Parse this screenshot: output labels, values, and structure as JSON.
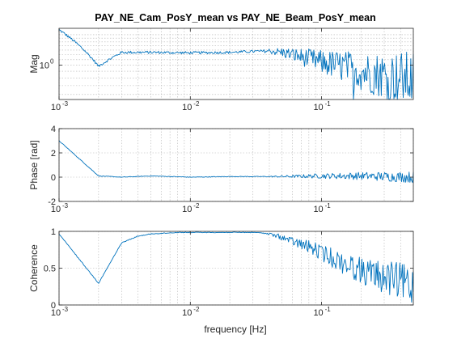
{
  "figure": {
    "title": "PAY_NE_Cam_PosY_mean vs PAY_NE_Beam_PosY_mean",
    "xlabel": "frequency [Hz]",
    "line_color": "#0072bd",
    "grid": true
  },
  "chart_data": [
    {
      "type": "line",
      "ylabel": "Mag",
      "xscale": "log",
      "yscale": "log",
      "xlim": [
        0.001,
        0.5
      ],
      "ylim": [
        0.55,
        1.9
      ],
      "x_ticks": [
        "10",
        "10",
        "10"
      ],
      "x_tick_exponents": [
        "-3",
        "-2",
        "-1"
      ],
      "y_ticks": [
        "10"
      ],
      "y_tick_exponents": [
        "0"
      ],
      "series": [
        {
          "x": [
            0.001,
            0.002,
            0.003,
            0.005,
            0.01,
            0.02,
            0.03,
            0.04,
            0.05,
            0.06,
            0.08,
            0.1,
            0.15,
            0.2,
            0.3,
            0.4,
            0.5
          ],
          "y": [
            1.85,
            0.98,
            1.25,
            1.25,
            1.24,
            1.25,
            1.27,
            1.28,
            1.25,
            1.2,
            1.12,
            1.05,
            0.97,
            0.9,
            0.84,
            0.8,
            0.78
          ]
        }
      ]
    },
    {
      "type": "line",
      "ylabel": "Phase [rad]",
      "xscale": "log",
      "yscale": "linear",
      "xlim": [
        0.001,
        0.5
      ],
      "ylim": [
        -2,
        4
      ],
      "x_ticks": [
        "10",
        "10",
        "10"
      ],
      "x_tick_exponents": [
        "-3",
        "-2",
        "-1"
      ],
      "y_ticks": [
        "4",
        "2",
        "0",
        "-2"
      ],
      "y_tick_values": [
        4,
        2,
        0,
        -2
      ],
      "series": [
        {
          "x": [
            0.001,
            0.002,
            0.003,
            0.005,
            0.01,
            0.02,
            0.05,
            0.1,
            0.2,
            0.5
          ],
          "y": [
            3.0,
            0.1,
            0.0,
            0.1,
            0.0,
            0.05,
            0.05,
            0.1,
            0.1,
            0.0
          ]
        }
      ]
    },
    {
      "type": "line",
      "ylabel": "Coherence",
      "xscale": "log",
      "yscale": "linear",
      "xlim": [
        0.001,
        0.5
      ],
      "ylim": [
        0,
        1
      ],
      "x_ticks": [
        "10",
        "10",
        "10"
      ],
      "x_tick_exponents": [
        "-3",
        "-2",
        "-1"
      ],
      "y_ticks": [
        "1",
        "0.5",
        "0"
      ],
      "y_tick_values": [
        1,
        0.5,
        0
      ],
      "series": [
        {
          "x": [
            0.001,
            0.002,
            0.003,
            0.004,
            0.005,
            0.008,
            0.01,
            0.02,
            0.03,
            0.04,
            0.05,
            0.06,
            0.08,
            0.1,
            0.15,
            0.2,
            0.3,
            0.5
          ],
          "y": [
            0.97,
            0.3,
            0.85,
            0.94,
            0.97,
            0.99,
            0.99,
            0.99,
            0.99,
            0.98,
            0.96,
            0.92,
            0.88,
            0.82,
            0.72,
            0.65,
            0.6,
            0.55
          ]
        }
      ]
    }
  ]
}
